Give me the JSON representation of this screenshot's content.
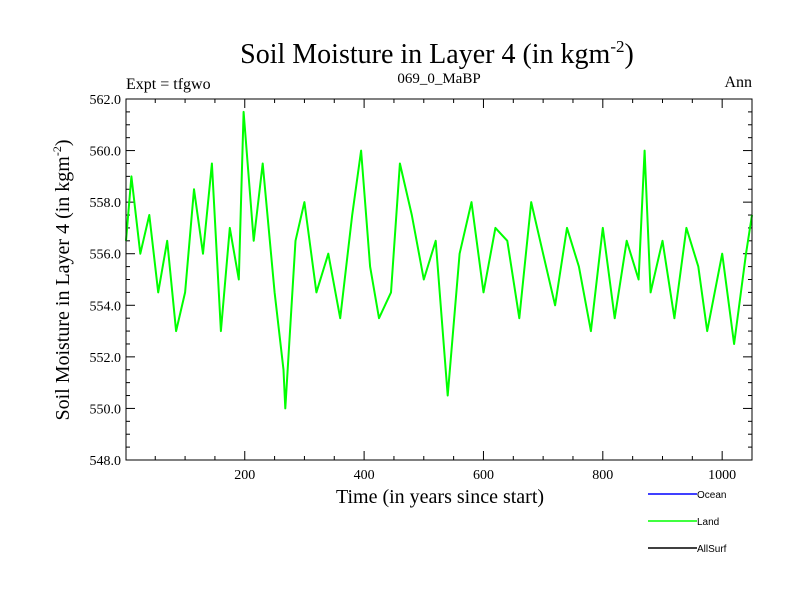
{
  "chart_data": {
    "type": "line",
    "title": "Soil Moisture in Layer 4 (in kgm",
    "title_sup": "-2",
    "title_end": ")",
    "subtitle_left": "Expt = tfgwo",
    "subtitle_center": "069_0_MaBP",
    "subtitle_right": "Ann",
    "xlabel": "Time (in years since start)",
    "ylabel": "Soil Moisture in Layer 4 (in kgm",
    "ylabel_sup": "-2",
    "ylabel_end": ")",
    "xlim": [
      1,
      1050
    ],
    "ylim": [
      548,
      562
    ],
    "xticks": [
      200,
      400,
      600,
      800,
      1000
    ],
    "xtick_labels": [
      "200",
      "400",
      "600",
      "800",
      "1000"
    ],
    "yticks": [
      548,
      550,
      552,
      554,
      556,
      558,
      560,
      562
    ],
    "ytick_labels": [
      "548.0",
      "550.0",
      "552.0",
      "554.0",
      "556.0",
      "558.0",
      "560.0",
      "562.0"
    ],
    "series": [
      {
        "name": "Land",
        "color": "#00ff00",
        "x": [
          0,
          10,
          25,
          40,
          55,
          70,
          85,
          100,
          115,
          130,
          145,
          160,
          175,
          190,
          198,
          215,
          230,
          250,
          265,
          268,
          285,
          300,
          320,
          340,
          360,
          380,
          395,
          410,
          425,
          445,
          460,
          480,
          500,
          520,
          540,
          560,
          580,
          600,
          620,
          640,
          660,
          680,
          700,
          720,
          740,
          760,
          780,
          800,
          820,
          840,
          860,
          870,
          880,
          900,
          920,
          940,
          960,
          975,
          1000,
          1020,
          1040,
          1050
        ],
        "values": [
          556.5,
          559.0,
          556.0,
          557.5,
          554.5,
          556.5,
          553.0,
          554.5,
          558.5,
          556.0,
          559.5,
          553.0,
          557.0,
          555.0,
          561.5,
          556.5,
          559.5,
          554.5,
          551.5,
          550.0,
          556.5,
          558.0,
          554.5,
          556.0,
          553.5,
          557.5,
          560.0,
          555.5,
          553.5,
          554.5,
          559.5,
          557.5,
          555.0,
          556.5,
          550.5,
          556.0,
          558.0,
          554.5,
          557.0,
          556.5,
          553.5,
          558.0,
          556.0,
          554.0,
          557.0,
          555.5,
          553.0,
          557.0,
          553.5,
          556.5,
          555.0,
          560.0,
          554.5,
          556.5,
          553.5,
          557.0,
          555.5,
          553.0,
          556.0,
          552.5,
          556.0,
          557.5
        ]
      }
    ],
    "legend": [
      {
        "name": "Ocean",
        "color": "#0000ff"
      },
      {
        "name": "Land",
        "color": "#00ff00"
      },
      {
        "name": "AllSurf",
        "color": "#000000"
      }
    ],
    "grid": false,
    "legend_position": "bottom-right"
  }
}
